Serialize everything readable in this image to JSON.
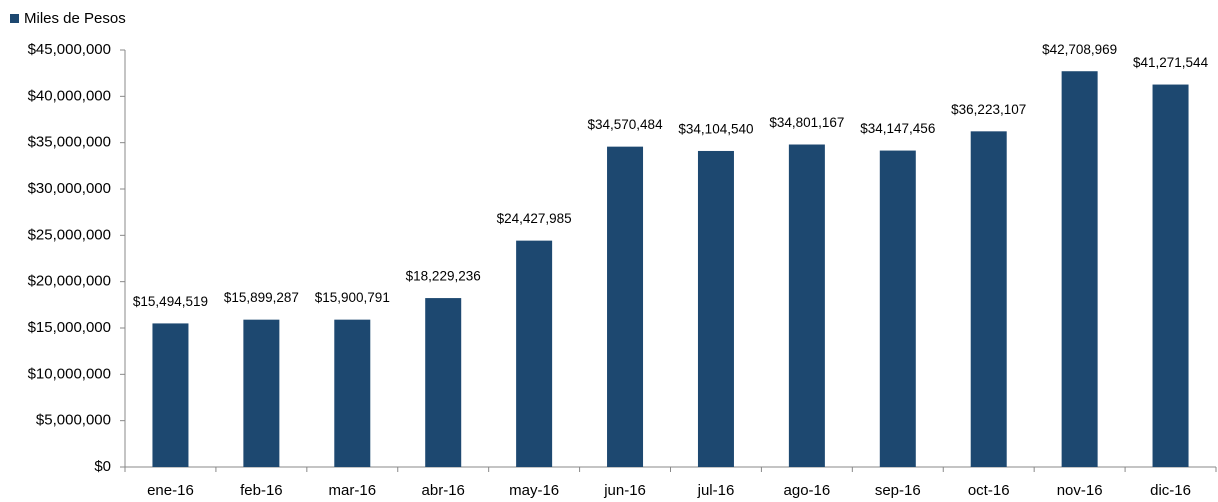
{
  "chart_data": {
    "type": "bar",
    "categories": [
      "ene-16",
      "feb-16",
      "mar-16",
      "abr-16",
      "may-16",
      "jun-16",
      "jul-16",
      "ago-16",
      "sep-16",
      "oct-16",
      "nov-16",
      "dic-16"
    ],
    "series": [
      {
        "name": "Miles de Pesos",
        "color": "#1d4870",
        "values": [
          15494519,
          15899287,
          15900791,
          18229236,
          24427985,
          34570484,
          34104540,
          34801167,
          34147456,
          36223107,
          42708969,
          41271544
        ],
        "value_labels": [
          "$15,494,519",
          "$15,899,287",
          "$15,900,791",
          "$18,229,236",
          "$24,427,985",
          "$34,570,484",
          "$34,104,540",
          "$34,801,167",
          "$34,147,456",
          "$36,223,107",
          "$42,708,969",
          "$41,271,544"
        ]
      }
    ],
    "ylim": [
      0,
      45000000
    ],
    "yticks": [
      {
        "value": 0,
        "label": "$0"
      },
      {
        "value": 5000000,
        "label": "$5,000,000"
      },
      {
        "value": 10000000,
        "label": "$10,000,000"
      },
      {
        "value": 15000000,
        "label": "$15,000,000"
      },
      {
        "value": 20000000,
        "label": "$20,000,000"
      },
      {
        "value": 25000000,
        "label": "$25,000,000"
      },
      {
        "value": 30000000,
        "label": "$30,000,000"
      },
      {
        "value": 35000000,
        "label": "$35,000,000"
      },
      {
        "value": 40000000,
        "label": "$40,000,000"
      },
      {
        "value": 45000000,
        "label": "$45,000,000"
      }
    ],
    "legend": "top-left",
    "grid": false
  }
}
